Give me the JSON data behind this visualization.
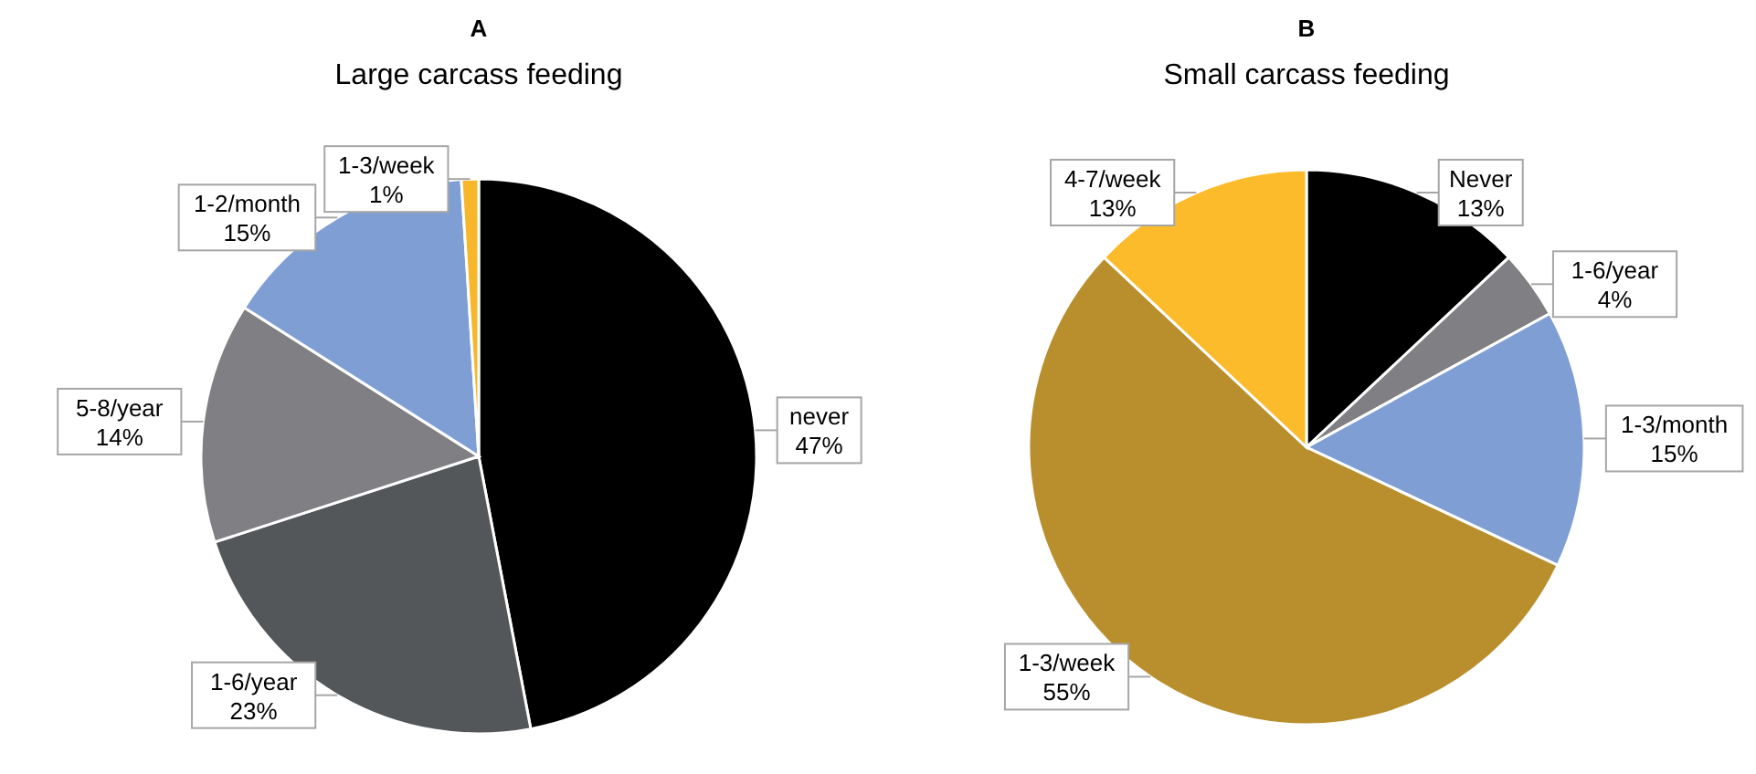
{
  "chart_data": [
    {
      "type": "pie",
      "title": "A",
      "subtitle": "Large carcass feeding",
      "categories": [
        "never",
        "1-6/year",
        "5-8/year",
        "1-2/month",
        "1-3/week"
      ],
      "values": [
        47,
        23,
        14,
        15,
        1
      ],
      "value_labels": [
        "47%",
        "23%",
        "14%",
        "15%",
        "1%"
      ],
      "colors": [
        "#000000",
        "#53575a",
        "#7f7f84",
        "#7f9fd4",
        "#f8b62a"
      ]
    },
    {
      "type": "pie",
      "title": "B",
      "subtitle": "Small carcass feeding",
      "categories": [
        "Never",
        "1-6/year",
        "1-3/month",
        "1-3/week",
        "4-7/week"
      ],
      "values": [
        13,
        4,
        15,
        55,
        13
      ],
      "value_labels": [
        "13%",
        "4%",
        "15%",
        "55%",
        "13%"
      ],
      "colors": [
        "#000000",
        "#7f7f84",
        "#7f9fd4",
        "#b98f2e",
        "#fbbb2b"
      ]
    }
  ]
}
